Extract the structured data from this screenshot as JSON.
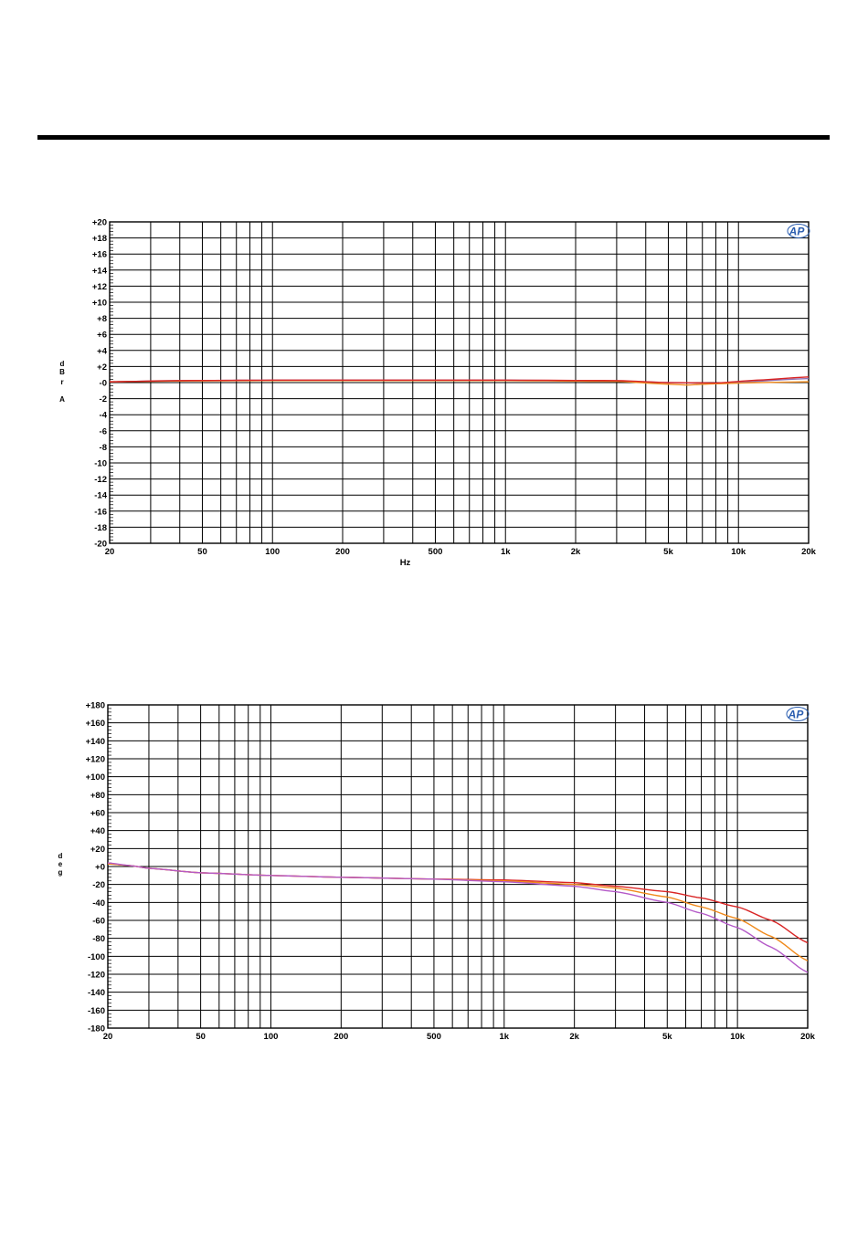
{
  "page": {},
  "chart_data": [
    {
      "type": "line",
      "xscale": "log",
      "xlim": [
        20,
        20000
      ],
      "ylim": [
        -20,
        20
      ],
      "xlabel": "Hz",
      "ylabel": "dBr A",
      "ylabel_lines": [
        "d",
        "B",
        "r",
        "A"
      ],
      "logo": "AP",
      "grid": true,
      "x_ticks": [
        {
          "v": 20,
          "label": "20"
        },
        {
          "v": 50,
          "label": "50"
        },
        {
          "v": 100,
          "label": "100"
        },
        {
          "v": 200,
          "label": "200"
        },
        {
          "v": 500,
          "label": "500"
        },
        {
          "v": 1000,
          "label": "1k"
        },
        {
          "v": 2000,
          "label": "2k"
        },
        {
          "v": 5000,
          "label": "5k"
        },
        {
          "v": 10000,
          "label": "10k"
        },
        {
          "v": 20000,
          "label": "20k"
        }
      ],
      "y_ticks": [
        {
          "v": 20,
          "label": "+20"
        },
        {
          "v": 18,
          "label": "+18"
        },
        {
          "v": 16,
          "label": "+16"
        },
        {
          "v": 14,
          "label": "+14"
        },
        {
          "v": 12,
          "label": "+12"
        },
        {
          "v": 10,
          "label": "+10"
        },
        {
          "v": 8,
          "label": "+8"
        },
        {
          "v": 6,
          "label": "+6"
        },
        {
          "v": 4,
          "label": "+4"
        },
        {
          "v": 2,
          "label": "+2"
        },
        {
          "v": 0,
          "label": "-0"
        },
        {
          "v": -2,
          "label": "-2"
        },
        {
          "v": -4,
          "label": "-4"
        },
        {
          "v": -6,
          "label": "-6"
        },
        {
          "v": -8,
          "label": "-8"
        },
        {
          "v": -10,
          "label": "-10"
        },
        {
          "v": -12,
          "label": "-12"
        },
        {
          "v": -14,
          "label": "-14"
        },
        {
          "v": -16,
          "label": "-16"
        },
        {
          "v": -18,
          "label": "-18"
        },
        {
          "v": -20,
          "label": "-20"
        }
      ],
      "series": [
        {
          "color": "#8e6fb0",
          "x": [
            20,
            40,
            100,
            1000,
            3000,
            5000,
            8000,
            20000
          ],
          "y": [
            0.1,
            0.25,
            0.3,
            0.3,
            0.2,
            0.0,
            -0.1,
            0.5
          ]
        },
        {
          "color": "#f08a1c",
          "x": [
            20,
            40,
            100,
            1000,
            3000,
            5000,
            6000,
            8000,
            12000,
            20000
          ],
          "y": [
            0.1,
            0.2,
            0.25,
            0.25,
            0.15,
            -0.2,
            -0.3,
            -0.15,
            0.0,
            0.1
          ]
        },
        {
          "color": "#d92424",
          "x": [
            20,
            40,
            100,
            1000,
            3000,
            5000,
            8000,
            12000,
            20000
          ],
          "y": [
            0.1,
            0.25,
            0.3,
            0.3,
            0.25,
            0.0,
            -0.05,
            0.3,
            0.7
          ]
        }
      ]
    },
    {
      "type": "line",
      "xscale": "log",
      "xlim": [
        20,
        20000
      ],
      "ylim": [
        -180,
        180
      ],
      "xlabel": "",
      "ylabel": "deg",
      "ylabel_lines": [
        "d",
        "e",
        "g"
      ],
      "logo": "AP",
      "grid": true,
      "x_ticks": [
        {
          "v": 20,
          "label": "20"
        },
        {
          "v": 50,
          "label": "50"
        },
        {
          "v": 100,
          "label": "100"
        },
        {
          "v": 200,
          "label": "200"
        },
        {
          "v": 500,
          "label": "500"
        },
        {
          "v": 1000,
          "label": "1k"
        },
        {
          "v": 2000,
          "label": "2k"
        },
        {
          "v": 5000,
          "label": "5k"
        },
        {
          "v": 10000,
          "label": "10k"
        },
        {
          "v": 20000,
          "label": "20k"
        }
      ],
      "y_ticks": [
        {
          "v": 180,
          "label": "+180"
        },
        {
          "v": 160,
          "label": "+160"
        },
        {
          "v": 140,
          "label": "+140"
        },
        {
          "v": 120,
          "label": "+120"
        },
        {
          "v": 100,
          "label": "+100"
        },
        {
          "v": 80,
          "label": "+80"
        },
        {
          "v": 60,
          "label": "+60"
        },
        {
          "v": 40,
          "label": "+40"
        },
        {
          "v": 20,
          "label": "+20"
        },
        {
          "v": 0,
          "label": "+0"
        },
        {
          "v": -20,
          "label": "-20"
        },
        {
          "v": -40,
          "label": "-40"
        },
        {
          "v": -60,
          "label": "-60"
        },
        {
          "v": -80,
          "label": "-80"
        },
        {
          "v": -100,
          "label": "-100"
        },
        {
          "v": -120,
          "label": "-120"
        },
        {
          "v": -140,
          "label": "-140"
        },
        {
          "v": -160,
          "label": "-160"
        },
        {
          "v": -180,
          "label": "-180"
        }
      ],
      "series": [
        {
          "color": "#d92424",
          "x": [
            20,
            25,
            30,
            50,
            100,
            200,
            500,
            1000,
            2000,
            3000,
            5000,
            7000,
            10000,
            14000,
            20000
          ],
          "y": [
            3,
            1,
            -2,
            -7,
            -10,
            -12,
            -14,
            -15,
            -18,
            -22,
            -28,
            -35,
            -45,
            -60,
            -85
          ]
        },
        {
          "color": "#f08a1c",
          "x": [
            20,
            25,
            30,
            50,
            100,
            200,
            500,
            1000,
            2000,
            3000,
            5000,
            7000,
            10000,
            14000,
            20000
          ],
          "y": [
            3,
            1,
            -2,
            -7,
            -10,
            -12,
            -14,
            -16,
            -20,
            -24,
            -34,
            -45,
            -58,
            -78,
            -105
          ]
        },
        {
          "color": "#b45ac8",
          "x": [
            20,
            25,
            30,
            50,
            100,
            200,
            500,
            1000,
            2000,
            3000,
            5000,
            7000,
            10000,
            14000,
            20000
          ],
          "y": [
            4,
            1,
            -2,
            -7,
            -10,
            -12,
            -14,
            -17,
            -22,
            -28,
            -40,
            -52,
            -68,
            -90,
            -118
          ]
        }
      ]
    }
  ]
}
